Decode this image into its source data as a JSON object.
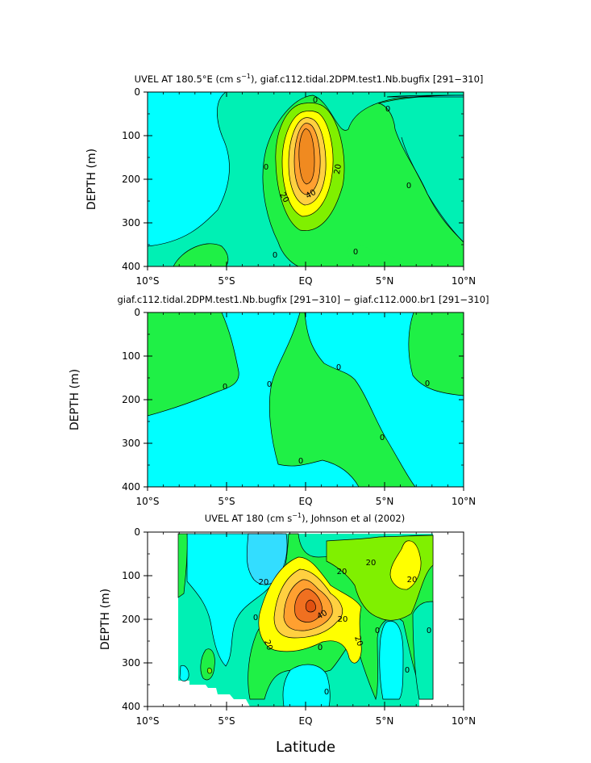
{
  "chart_data": [
    {
      "type": "contour",
      "title": "UVEL AT 180.5°E (cm s⁻¹), giaf.c112.tidal.2DPM.test1.Nb.bugfix [291–310]",
      "title_main": "UVEL AT 180.5°E (cm s",
      "title_sup": "−1",
      "title_rest": "), giaf.c112.tidal.2DPM.test1.Nb.bugfix [291−310]",
      "ylabel": "DEPTH (m)",
      "xlabel": "",
      "x_ticks": [
        "10°S",
        "5°S",
        "EQ",
        "5°N",
        "10°N"
      ],
      "y_ticks": [
        "0",
        "100",
        "200",
        "300",
        "400"
      ],
      "xlim": [
        -10,
        10
      ],
      "ylim": [
        400,
        0
      ],
      "contour_interval": 10,
      "contour_labels": [
        "0",
        "0",
        "0",
        "20",
        "20",
        "40",
        "0",
        "0",
        "0"
      ],
      "max_region": {
        "lat": 0.1,
        "depth": 165,
        "value": 60
      }
    },
    {
      "type": "contour",
      "title": "giaf.c112.tidal.2DPM.test1.Nb.bugfix [291−310] − giaf.c112.000.br1 [291−310]",
      "ylabel": "DEPTH (m)",
      "xlabel": "",
      "x_ticks": [
        "10°S",
        "5°S",
        "EQ",
        "5°N",
        "10°N"
      ],
      "y_ticks": [
        "0",
        "100",
        "200",
        "300",
        "400"
      ],
      "xlim": [
        -10,
        10
      ],
      "ylim": [
        400,
        0
      ],
      "contour_labels": [
        "0",
        "0",
        "0",
        "0",
        "0",
        "0"
      ]
    },
    {
      "type": "contour",
      "title": "UVEL AT 180 (cm s⁻¹), Johnson et al (2002)",
      "title_main": "UVEL AT 180 (cm s",
      "title_sup": "−1",
      "title_rest": "), Johnson et al (2002)",
      "ylabel": "DEPTH (m)",
      "xlabel": "Latitude",
      "x_ticks": [
        "10°S",
        "5°S",
        "EQ",
        "5°N",
        "10°N"
      ],
      "y_ticks": [
        "0",
        "100",
        "200",
        "300",
        "400"
      ],
      "xlim": [
        -10,
        10
      ],
      "ylim": [
        400,
        0
      ],
      "data_extent_lat": [
        -8,
        8
      ],
      "contour_labels": [
        "20",
        "0",
        "20",
        "40",
        "20",
        "0",
        "20",
        "0",
        "0",
        "20",
        "0",
        "0",
        "20",
        "20"
      ],
      "max_region": {
        "lat": 0.4,
        "depth": 170,
        "value": 60
      }
    }
  ],
  "colors": {
    "cyan": "#00ffff",
    "light_cyan": "#33ddff",
    "teal": "#00f0b4",
    "green": "#1ff046",
    "yellowgreen": "#80f000",
    "yellow": "#ffff00",
    "lightorange": "#ffd040",
    "orange": "#ffa030",
    "darkorange": "#f07020",
    "blue": "#40e0ff"
  }
}
